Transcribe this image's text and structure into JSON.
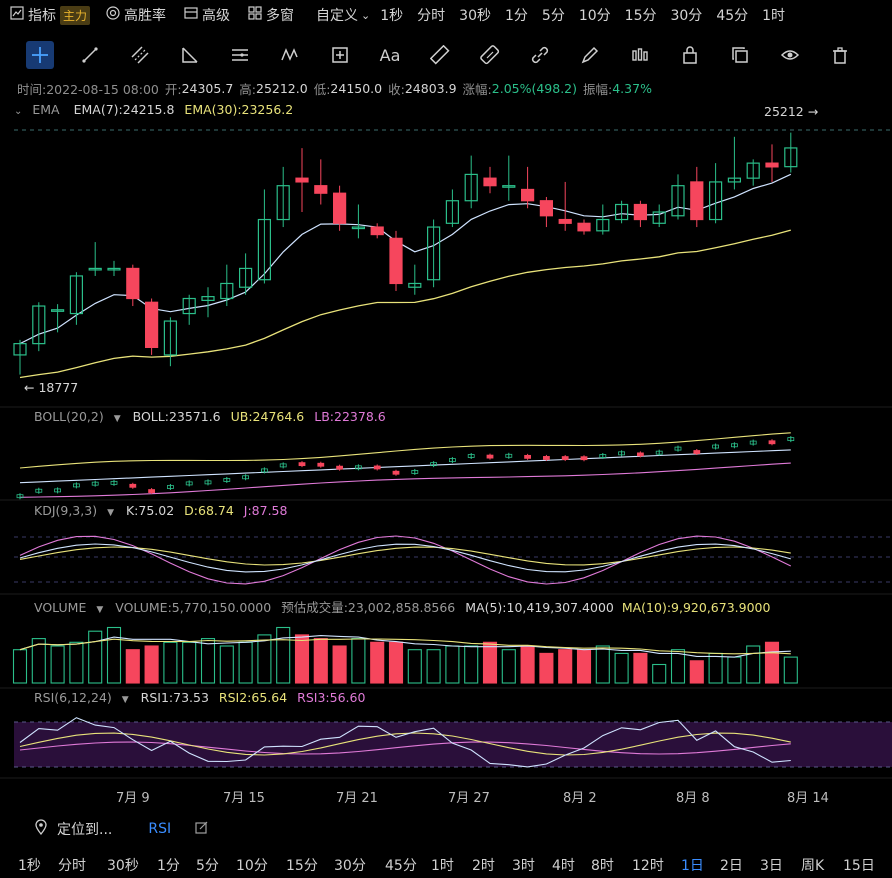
{
  "top_bar": {
    "indicator_label": "指标",
    "main_badge": "主力",
    "win_rate_label": "高胜率",
    "advanced_label": "高级",
    "multi_window_label": "多窗",
    "custom_label": "自定义",
    "intervals": [
      "1秒",
      "分时",
      "30秒",
      "1分",
      "5分",
      "10分",
      "15分",
      "30分",
      "45分",
      "1时"
    ]
  },
  "ohlc_bar": {
    "time": "时间:2022-08-15 08:00",
    "open_label": "开:",
    "open": "24305.7",
    "high_label": "高:",
    "high": "25212.0",
    "low_label": "低:",
    "low": "24150.0",
    "close_label": "收:",
    "close": "24803.9",
    "change_label": "涨幅:",
    "change": "2.05%(498.2)",
    "amp_label": "振幅:",
    "amp": "4.37%"
  },
  "ema_panel": {
    "name": "EMA",
    "ema7": "EMA(7):24215.8",
    "ema30": "EMA(30):23256.2",
    "high_marker": "25212 →",
    "low_marker": "← 18777"
  },
  "boll_panel": {
    "name": "BOLL(20,2)",
    "boll": "BOLL:23571.6",
    "ub": "UB:24764.6",
    "lb": "LB:22378.6"
  },
  "kdj_panel": {
    "name": "KDJ(9,3,3)",
    "k": "K:75.02",
    "d": "D:68.74",
    "j": "J:87.58"
  },
  "volume_panel": {
    "name": "VOLUME",
    "volume": "VOLUME:5,770,150.0000",
    "estimated": "预估成交量:23,002,858.8566",
    "ma5": "MA(5):10,419,307.4000",
    "ma10": "MA(10):9,920,673.9000"
  },
  "rsi_panel": {
    "name": "RSI(6,12,24)",
    "rsi1": "RSI1:73.53",
    "rsi2": "RSI2:65.64",
    "rsi3": "RSI3:56.60"
  },
  "x_axis_labels": [
    "7月 9",
    "7月 15",
    "7月 21",
    "7月 27",
    "8月 2",
    "8月 8",
    "8月 14"
  ],
  "locate_label": "定位到...",
  "rsi_link": "RSI",
  "bottom_intervals": [
    "1秒",
    "分时",
    "30秒",
    "1分",
    "5分",
    "10分",
    "15分",
    "30分",
    "45分",
    "1时",
    "2时",
    "3时",
    "4时",
    "8时",
    "12时",
    "1日",
    "2日",
    "3日",
    "周K",
    "15日"
  ],
  "selected_interval": "1日",
  "colors": {
    "up": "#2bbf8a",
    "down": "#f6465d",
    "ema7": "#cfe3ff",
    "ema30": "#e8e27a",
    "accent": "#3a8dff"
  },
  "chart_data": {
    "type": "candlestick",
    "dates": [
      "2022-07-05",
      "2022-07-06",
      "2022-07-07",
      "2022-07-08",
      "2022-07-09",
      "2022-07-10",
      "2022-07-11",
      "2022-07-12",
      "2022-07-13",
      "2022-07-14",
      "2022-07-15",
      "2022-07-16",
      "2022-07-17",
      "2022-07-18",
      "2022-07-19",
      "2022-07-20",
      "2022-07-21",
      "2022-07-22",
      "2022-07-23",
      "2022-07-24",
      "2022-07-25",
      "2022-07-26",
      "2022-07-27",
      "2022-07-28",
      "2022-07-29",
      "2022-07-30",
      "2022-07-31",
      "2022-08-01",
      "2022-08-02",
      "2022-08-03",
      "2022-08-04",
      "2022-08-05",
      "2022-08-06",
      "2022-08-07",
      "2022-08-08",
      "2022-08-09",
      "2022-08-10",
      "2022-08-11",
      "2022-08-12",
      "2022-08-13",
      "2022-08-14",
      "2022-08-15"
    ],
    "candles": [
      [
        19300,
        19600,
        18777,
        19700
      ],
      [
        19600,
        20600,
        19400,
        20700
      ],
      [
        20500,
        20500,
        19900,
        20650
      ],
      [
        20400,
        21400,
        20100,
        21500
      ],
      [
        21600,
        21600,
        21400,
        22300
      ],
      [
        21600,
        21600,
        21400,
        21800
      ],
      [
        21600,
        20800,
        20600,
        21700
      ],
      [
        20700,
        19500,
        19300,
        20800
      ],
      [
        19300,
        20200,
        19000,
        20300
      ],
      [
        20400,
        20800,
        20100,
        20900
      ],
      [
        20750,
        20850,
        20300,
        21100
      ],
      [
        20800,
        21200,
        20600,
        21700
      ],
      [
        21100,
        21600,
        20900,
        22000
      ],
      [
        21300,
        22900,
        21200,
        23700
      ],
      [
        22900,
        23800,
        22700,
        24300
      ],
      [
        24000,
        23900,
        23100,
        24800
      ],
      [
        23800,
        23600,
        23300,
        24500
      ],
      [
        23600,
        22800,
        22600,
        23800
      ],
      [
        22700,
        22700,
        22400,
        23300
      ],
      [
        22700,
        22500,
        22400,
        22800
      ],
      [
        22400,
        21200,
        21000,
        22600
      ],
      [
        21100,
        21200,
        20900,
        21700
      ],
      [
        21300,
        22700,
        21100,
        22900
      ],
      [
        22800,
        23400,
        22700,
        23700
      ],
      [
        23400,
        24100,
        23200,
        24600
      ],
      [
        24000,
        23800,
        23600,
        24300
      ],
      [
        23800,
        23800,
        23400,
        24600
      ],
      [
        23700,
        23400,
        23200,
        24300
      ],
      [
        23400,
        23000,
        22700,
        23500
      ],
      [
        22900,
        22800,
        22600,
        23900
      ],
      [
        22800,
        22600,
        22500,
        22900
      ],
      [
        22600,
        22900,
        22500,
        23300
      ],
      [
        22900,
        23300,
        22800,
        23400
      ],
      [
        23300,
        22900,
        22700,
        23400
      ],
      [
        22800,
        23100,
        22700,
        23300
      ],
      [
        23000,
        23800,
        22900,
        24100
      ],
      [
        23900,
        22900,
        22700,
        24300
      ],
      [
        22900,
        23900,
        22800,
        24400
      ],
      [
        23900,
        24000,
        23700,
        25100
      ],
      [
        24000,
        24400,
        23800,
        24500
      ],
      [
        24400,
        24300,
        23900,
        24900
      ],
      [
        24305.7,
        24803.9,
        24150,
        25212
      ]
    ],
    "volume": [
      9,
      12,
      10,
      11,
      14,
      15,
      9,
      10,
      11,
      11,
      12,
      10,
      11,
      13,
      15,
      13,
      12,
      10,
      12,
      11,
      11,
      9,
      9,
      10,
      10,
      11,
      9,
      10,
      8,
      9,
      9,
      10,
      8,
      8,
      5,
      9,
      6,
      8,
      7,
      10,
      11,
      7
    ],
    "ylim": [
      18500,
      25600
    ]
  }
}
